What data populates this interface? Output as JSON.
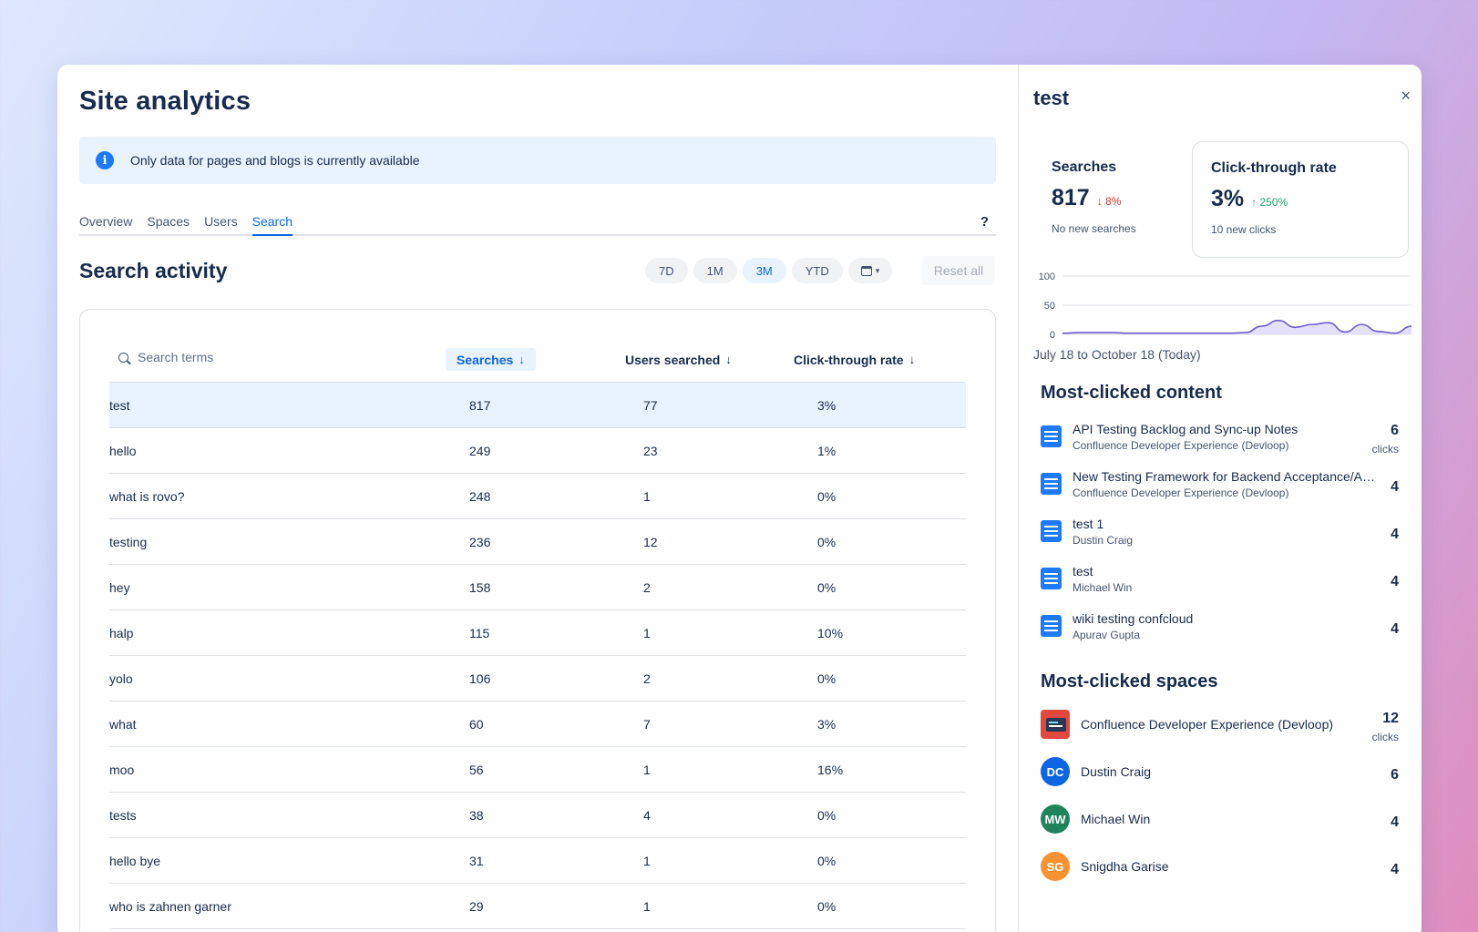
{
  "page": {
    "title": "Site analytics",
    "banner": "Only data for pages and blogs is currently available",
    "tabs": [
      "Overview",
      "Spaces",
      "Users",
      "Search"
    ],
    "active_tab": "Search",
    "help": "?"
  },
  "search_activity": {
    "title": "Search activity",
    "ranges": [
      "7D",
      "1M",
      "3M",
      "YTD"
    ],
    "active_range": "3M",
    "reset_label": "Reset all",
    "search_placeholder": "Search terms",
    "columns": [
      "Searches",
      "Users searched",
      "Click-through rate"
    ],
    "rows": [
      {
        "term": "test",
        "searches": "817",
        "users": "77",
        "ctr": "3%"
      },
      {
        "term": "hello",
        "searches": "249",
        "users": "23",
        "ctr": "1%"
      },
      {
        "term": "what is rovo?",
        "searches": "248",
        "users": "1",
        "ctr": "0%"
      },
      {
        "term": "testing",
        "searches": "236",
        "users": "12",
        "ctr": "0%"
      },
      {
        "term": "hey",
        "searches": "158",
        "users": "2",
        "ctr": "0%"
      },
      {
        "term": "halp",
        "searches": "115",
        "users": "1",
        "ctr": "10%"
      },
      {
        "term": "yolo",
        "searches": "106",
        "users": "2",
        "ctr": "0%"
      },
      {
        "term": "what",
        "searches": "60",
        "users": "7",
        "ctr": "3%"
      },
      {
        "term": "moo",
        "searches": "56",
        "users": "1",
        "ctr": "16%"
      },
      {
        "term": "tests",
        "searches": "38",
        "users": "4",
        "ctr": "0%"
      },
      {
        "term": "hello bye",
        "searches": "31",
        "users": "1",
        "ctr": "0%"
      },
      {
        "term": "who is zahnen garner",
        "searches": "29",
        "users": "1",
        "ctr": "0%"
      }
    ]
  },
  "panel": {
    "title": "test",
    "close": "×",
    "searches": {
      "label": "Searches",
      "value": "817",
      "delta": "8%",
      "sub": "No new searches"
    },
    "ctr": {
      "label": "Click-through rate",
      "value": "3%",
      "delta": "250%",
      "sub": "10 new clicks"
    },
    "date_range": "July 18 to October 18 (Today)",
    "most_clicked_content_title": "Most-clicked content",
    "content": [
      {
        "title": "API Testing Backlog and Sync-up Notes",
        "sub": "Confluence Developer Experience (Devloop)",
        "count": "6",
        "unit": "clicks"
      },
      {
        "title": "New Testing Framework for Backend Acceptance/API Testing",
        "sub": "Confluence Developer Experience (Devloop)",
        "count": "4"
      },
      {
        "title": "test 1",
        "sub": "Dustin Craig",
        "count": "4"
      },
      {
        "title": "test",
        "sub": "Michael Win",
        "count": "4"
      },
      {
        "title": "wiki testing confcloud",
        "sub": "Apurav Gupta",
        "count": "4"
      }
    ],
    "most_clicked_spaces_title": "Most-clicked spaces",
    "spaces": [
      {
        "name": "Confluence Developer Experience (Devloop)",
        "count": "12",
        "unit": "clicks"
      },
      {
        "initials": "DC",
        "name": "Dustin Craig",
        "count": "6",
        "color": "#0c66e4"
      },
      {
        "initials": "MW",
        "name": "Michael Win",
        "count": "4",
        "color": "#1f845a"
      },
      {
        "initials": "SG",
        "name": "Snigdha Garise",
        "count": "4",
        "color": "#f79232"
      }
    ]
  },
  "chart_data": {
    "type": "area",
    "yticks": [
      "100",
      "50",
      "0"
    ],
    "ylim": [
      0,
      100
    ],
    "xlabel": "July 18 to October 18 (Today)",
    "values": [
      2,
      3,
      3,
      3,
      2,
      2,
      2,
      2,
      2,
      2,
      2,
      3,
      14,
      24,
      12,
      17,
      20,
      4,
      17,
      5,
      2,
      14
    ]
  },
  "colors": {
    "accent": "#0c66e4",
    "chart_line": "#6e5dc6",
    "chart_fill": "#dfd8fd"
  }
}
